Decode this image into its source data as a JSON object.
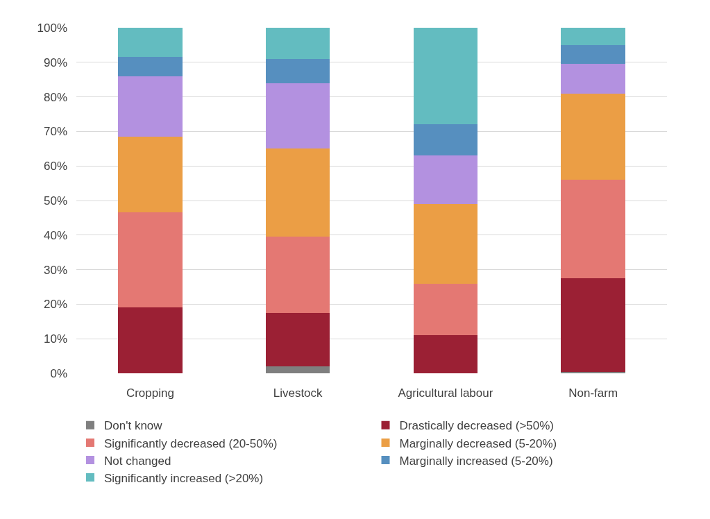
{
  "chart_data": {
    "type": "bar",
    "stacked": true,
    "categories": [
      "Cropping",
      "Livestock",
      "Agricultural labour",
      "Non-farm"
    ],
    "series": [
      {
        "name": "Don't know",
        "color": "#7f7f7f",
        "values": [
          0,
          2,
          0,
          0.5
        ]
      },
      {
        "name": "Drastically decreased (>50%)",
        "color": "#9b2034",
        "values": [
          19,
          15.5,
          11,
          27
        ]
      },
      {
        "name": "Significantly decreased (20-50%)",
        "color": "#e47873",
        "values": [
          27.5,
          22,
          15,
          28.5
        ]
      },
      {
        "name": "Marginally decreased (5-20%)",
        "color": "#eb9e45",
        "values": [
          22,
          25.5,
          23,
          25
        ]
      },
      {
        "name": "Not changed",
        "color": "#b391e0",
        "values": [
          17.5,
          19,
          14,
          8.5
        ]
      },
      {
        "name": "Marginally increased (5-20%)",
        "color": "#568fbf",
        "values": [
          5.5,
          7,
          9,
          5.5
        ]
      },
      {
        "name": "Significantly increased (>20%)",
        "color": "#63bcc0",
        "values": [
          8.5,
          9,
          28,
          5
        ]
      }
    ],
    "ylim": [
      0,
      100
    ],
    "yticks": [
      {
        "value": 0,
        "label": "0%"
      },
      {
        "value": 10,
        "label": "10%"
      },
      {
        "value": 20,
        "label": "20%"
      },
      {
        "value": 30,
        "label": "30%"
      },
      {
        "value": 40,
        "label": "40%"
      },
      {
        "value": 50,
        "label": "50%"
      },
      {
        "value": 60,
        "label": "60%"
      },
      {
        "value": 70,
        "label": "70%"
      },
      {
        "value": 80,
        "label": "80%"
      },
      {
        "value": 90,
        "label": "90%"
      },
      {
        "value": 100,
        "label": "100%"
      }
    ],
    "grid": "y",
    "legend": "bottom"
  }
}
